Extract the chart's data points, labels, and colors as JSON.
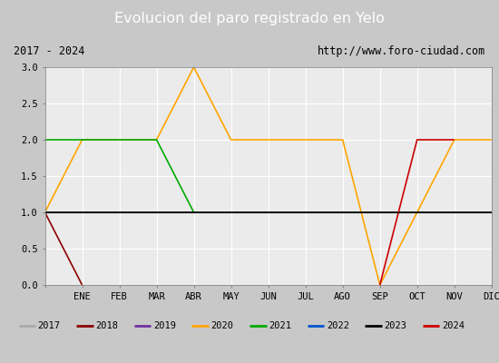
{
  "title": "Evolucion del paro registrado en Yelo",
  "title_color": "#ffffff",
  "title_bg": "#4472c4",
  "subtitle_left": "2017 - 2024",
  "subtitle_right": "http://www.foro-ciudad.com",
  "months": [
    "",
    "ENE",
    "FEB",
    "MAR",
    "ABR",
    "MAY",
    "JUN",
    "JUL",
    "AGO",
    "SEP",
    "OCT",
    "NOV",
    "DIC"
  ],
  "ylim": [
    0.0,
    3.0
  ],
  "yticks": [
    0.0,
    0.5,
    1.0,
    1.5,
    2.0,
    2.5,
    3.0
  ],
  "series": {
    "2017": {
      "color": "#aaaaaa",
      "data": []
    },
    "2018": {
      "color": "#8b0000",
      "data": [
        [
          0,
          1.0
        ],
        [
          1,
          0.0
        ]
      ]
    },
    "2019": {
      "color": "#7030a0",
      "data": [
        [
          0,
          1.0
        ],
        [
          4,
          1.0
        ]
      ]
    },
    "2020": {
      "color": "#ffa500",
      "data": [
        [
          0,
          1.0
        ],
        [
          1,
          2.0
        ],
        [
          3,
          2.0
        ],
        [
          4,
          3.0
        ],
        [
          5,
          2.0
        ],
        [
          8,
          2.0
        ],
        [
          9,
          0.0
        ],
        [
          11,
          2.0
        ],
        [
          12,
          2.0
        ]
      ]
    },
    "2021": {
      "color": "#00aa00",
      "data": [
        [
          0,
          2.0
        ],
        [
          3,
          2.0
        ],
        [
          4,
          1.0
        ],
        [
          12,
          1.0
        ]
      ]
    },
    "2022": {
      "color": "#0055cc",
      "data": []
    },
    "2023": {
      "color": "#000000",
      "data": [
        [
          0,
          1.0
        ],
        [
          12,
          1.0
        ]
      ]
    },
    "2024": {
      "color": "#cc0000",
      "data": [
        [
          9,
          0.0
        ],
        [
          10,
          2.0
        ],
        [
          11,
          2.0
        ]
      ]
    }
  },
  "legend_order": [
    "2017",
    "2018",
    "2019",
    "2020",
    "2021",
    "2022",
    "2023",
    "2024"
  ],
  "bg_plot": "#ebebeb",
  "bg_fig": "#c8c8c8",
  "bg_subtitle": "#e0e0e0",
  "bg_legend": "#d4d4d4",
  "grid_color": "#ffffff",
  "hline_y": 1.0,
  "hline_color": "#000000",
  "hline_lw": 0.8
}
